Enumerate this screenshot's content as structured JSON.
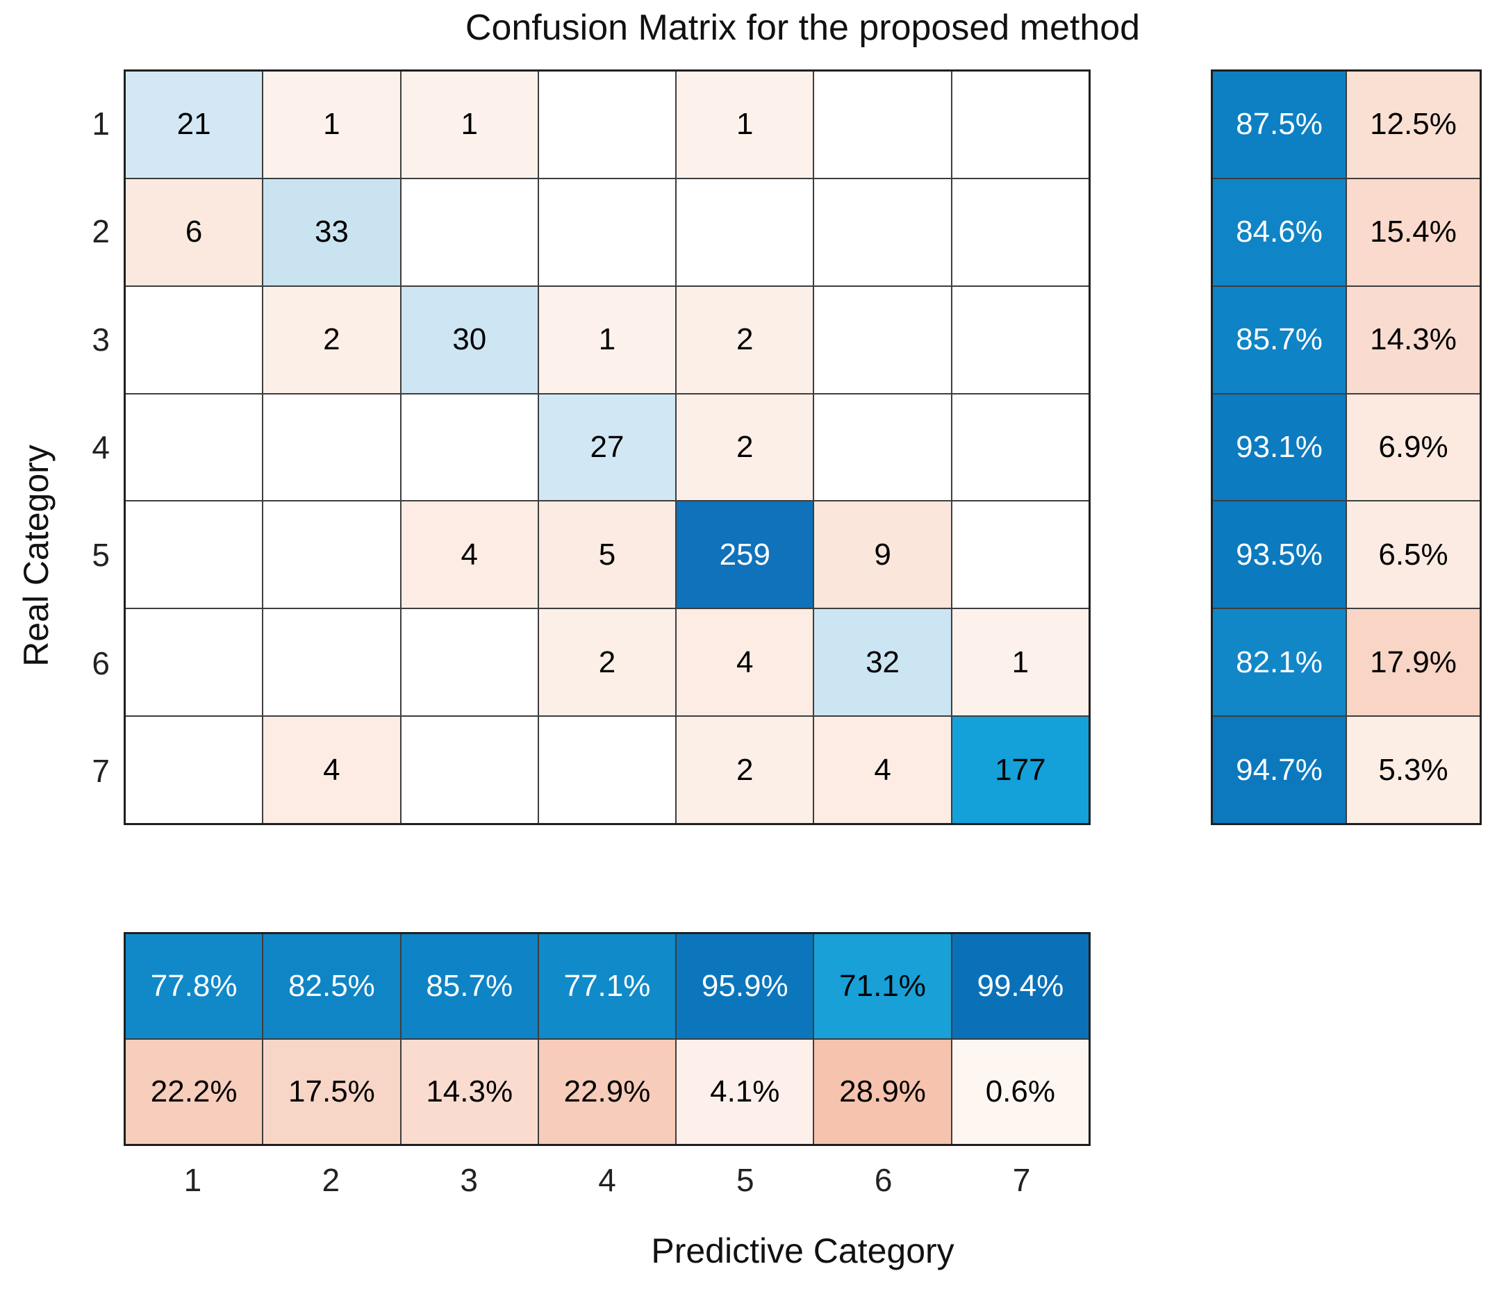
{
  "title": "Confusion Matrix for the proposed method",
  "xlabel": "Predictive Category",
  "ylabel": "Real Category",
  "x_ticks": [
    "1",
    "2",
    "3",
    "4",
    "5",
    "6",
    "7"
  ],
  "y_ticks": [
    "1",
    "2",
    "3",
    "4",
    "5",
    "6",
    "7"
  ],
  "chart_data": {
    "type": "heatmap",
    "title": "Confusion Matrix for the proposed method",
    "xlabel": "Predictive Category",
    "ylabel": "Real Category",
    "x_categories": [
      "1",
      "2",
      "3",
      "4",
      "5",
      "6",
      "7"
    ],
    "y_categories": [
      "1",
      "2",
      "3",
      "4",
      "5",
      "6",
      "7"
    ],
    "matrix": [
      [
        21,
        1,
        1,
        null,
        1,
        null,
        null
      ],
      [
        6,
        33,
        null,
        null,
        null,
        null,
        null
      ],
      [
        null,
        2,
        30,
        1,
        2,
        null,
        null
      ],
      [
        null,
        null,
        null,
        27,
        2,
        null,
        null
      ],
      [
        null,
        null,
        4,
        5,
        259,
        9,
        null
      ],
      [
        null,
        null,
        null,
        2,
        4,
        32,
        1
      ],
      [
        null,
        4,
        null,
        null,
        2,
        4,
        177
      ]
    ],
    "row_summary": {
      "correct_pct": [
        87.5,
        84.6,
        85.7,
        93.1,
        93.5,
        82.1,
        94.7
      ],
      "incorrect_pct": [
        12.5,
        15.4,
        14.3,
        6.9,
        6.5,
        17.9,
        5.3
      ]
    },
    "col_summary": {
      "correct_pct": [
        77.8,
        82.5,
        85.7,
        77.1,
        95.9,
        71.1,
        99.4
      ],
      "incorrect_pct": [
        22.2,
        17.5,
        14.3,
        22.9,
        4.1,
        28.9,
        0.6
      ]
    },
    "colormap": {
      "diagonal_accent": "#0F72BA",
      "off_diagonal_accent": "#F5C3AE",
      "grid_line": "#3d3d3d",
      "background": "#ffffff"
    },
    "legend_position": "none",
    "grid": true
  },
  "display": {
    "matrix_text": [
      [
        "21",
        "1",
        "1",
        "",
        "1",
        "",
        ""
      ],
      [
        "6",
        "33",
        "",
        "",
        "",
        "",
        ""
      ],
      [
        "",
        "2",
        "30",
        "1",
        "2",
        "",
        ""
      ],
      [
        "",
        "",
        "",
        "27",
        "2",
        "",
        ""
      ],
      [
        "",
        "",
        "4",
        "5",
        "259",
        "9",
        ""
      ],
      [
        "",
        "",
        "",
        "2",
        "4",
        "32",
        "1"
      ],
      [
        "",
        "4",
        "",
        "",
        "2",
        "4",
        "177"
      ]
    ],
    "matrix_bg": [
      [
        "#D3E8F4",
        "#FDF1EB",
        "#FDF1EB",
        "#FFFFFF",
        "#FDF1EB",
        "#FFFFFF",
        "#FFFFFF"
      ],
      [
        "#FBE9E0",
        "#C9E3F1",
        "#FFFFFF",
        "#FFFFFF",
        "#FFFFFF",
        "#FFFFFF",
        "#FFFFFF"
      ],
      [
        "#FFFFFF",
        "#FCEFE8",
        "#CEE6F3",
        "#FDF1EB",
        "#FCEFE8",
        "#FFFFFF",
        "#FFFFFF"
      ],
      [
        "#FFFFFF",
        "#FFFFFF",
        "#FFFFFF",
        "#D1E8F4",
        "#FCEFE8",
        "#FFFFFF",
        "#FFFFFF"
      ],
      [
        "#FFFFFF",
        "#FFFFFF",
        "#FCECE4",
        "#FBEBE2",
        "#0F72BA",
        "#FAE6DB",
        "#FFFFFF"
      ],
      [
        "#FFFFFF",
        "#FFFFFF",
        "#FFFFFF",
        "#FCEFE8",
        "#FCECE4",
        "#CCE5F2",
        "#FDF1EB"
      ],
      [
        "#FFFFFF",
        "#FCECE4",
        "#FFFFFF",
        "#FFFFFF",
        "#FCEFE8",
        "#FCECE4",
        "#14A0D8"
      ]
    ],
    "matrix_fg": [
      [
        "#000000",
        "#000000",
        "#000000",
        "#000000",
        "#000000",
        "#000000",
        "#000000"
      ],
      [
        "#000000",
        "#000000",
        "#000000",
        "#000000",
        "#000000",
        "#000000",
        "#000000"
      ],
      [
        "#000000",
        "#000000",
        "#000000",
        "#000000",
        "#000000",
        "#000000",
        "#000000"
      ],
      [
        "#000000",
        "#000000",
        "#000000",
        "#000000",
        "#000000",
        "#000000",
        "#000000"
      ],
      [
        "#000000",
        "#000000",
        "#000000",
        "#000000",
        "#FFFFFF",
        "#000000",
        "#000000"
      ],
      [
        "#000000",
        "#000000",
        "#000000",
        "#000000",
        "#000000",
        "#000000",
        "#000000"
      ],
      [
        "#000000",
        "#000000",
        "#000000",
        "#000000",
        "#000000",
        "#000000",
        "#000000"
      ]
    ],
    "row_summary_text": [
      [
        "87.5%",
        "12.5%"
      ],
      [
        "84.6%",
        "15.4%"
      ],
      [
        "85.7%",
        "14.3%"
      ],
      [
        "93.1%",
        "6.9%"
      ],
      [
        "93.5%",
        "6.5%"
      ],
      [
        "82.1%",
        "17.9%"
      ],
      [
        "94.7%",
        "5.3%"
      ]
    ],
    "row_summary_bg": [
      [
        "#0D80C3",
        "#FADFD3"
      ],
      [
        "#0F84C6",
        "#F9DACC"
      ],
      [
        "#0E83C5",
        "#F9DCCF"
      ],
      [
        "#0C7BC0",
        "#FCEAE1"
      ],
      [
        "#0C7ABF",
        "#FCEBE2"
      ],
      [
        "#1187C8",
        "#F8D5C5"
      ],
      [
        "#0C79BE",
        "#FCEDE5"
      ]
    ],
    "row_summary_fg": [
      [
        "#FFFFFF",
        "#000000"
      ],
      [
        "#FFFFFF",
        "#000000"
      ],
      [
        "#FFFFFF",
        "#000000"
      ],
      [
        "#FFFFFF",
        "#000000"
      ],
      [
        "#FFFFFF",
        "#000000"
      ],
      [
        "#FFFFFF",
        "#000000"
      ],
      [
        "#FFFFFF",
        "#000000"
      ]
    ],
    "col_summary_text": [
      [
        "77.8%",
        "82.5%",
        "85.7%",
        "77.1%",
        "95.9%",
        "71.1%",
        "99.4%"
      ],
      [
        "22.2%",
        "17.5%",
        "14.3%",
        "22.9%",
        "4.1%",
        "28.9%",
        "0.6%"
      ]
    ],
    "col_summary_bg": [
      [
        "#1189C9",
        "#0F85C6",
        "#0E83C5",
        "#118AC9",
        "#0B76BC",
        "#18A0D7",
        "#0A71B8"
      ],
      [
        "#F7CDBC",
        "#F8D6C7",
        "#F9DCCF",
        "#F7CCBA",
        "#FDF0EA",
        "#F5C3AE",
        "#FEF6F1"
      ]
    ],
    "col_summary_fg": [
      [
        "#FFFFFF",
        "#FFFFFF",
        "#FFFFFF",
        "#FFFFFF",
        "#FFFFFF",
        "#000000",
        "#FFFFFF"
      ],
      [
        "#000000",
        "#000000",
        "#000000",
        "#000000",
        "#000000",
        "#000000",
        "#000000"
      ]
    ]
  }
}
